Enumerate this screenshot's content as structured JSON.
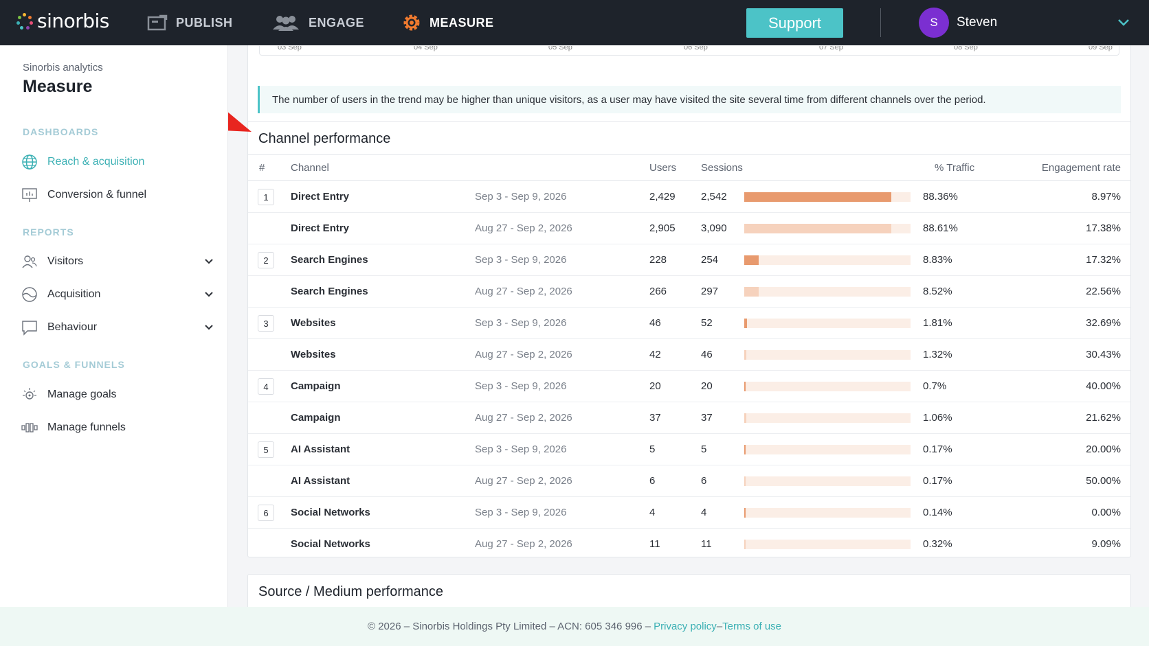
{
  "topbar": {
    "brand": "sinorbis",
    "nav": [
      {
        "label": "PUBLISH",
        "icon": "publish-icon"
      },
      {
        "label": "ENGAGE",
        "icon": "users-icon"
      },
      {
        "label": "MEASURE",
        "icon": "gear-icon"
      }
    ],
    "support_label": "Support",
    "avatar_initial": "S",
    "user_name": "Steven",
    "colors": {
      "bar": "#1e232b",
      "support": "#4cc3c7",
      "avatar": "#7b2fd1",
      "measure_icon": "#f07a2f"
    }
  },
  "sidebar": {
    "subtitle": "Sinorbis analytics",
    "title": "Measure",
    "sections": {
      "dashboards": "DASHBOARDS",
      "reports": "REPORTS",
      "goals": "GOALS & FUNNELS"
    },
    "items": {
      "reach": {
        "label": "Reach & acquisition",
        "icon": "globe-icon"
      },
      "conversion": {
        "label": "Conversion & funnel",
        "icon": "presentation-icon"
      },
      "visitors": {
        "label": "Visitors",
        "icon": "visitors-icon"
      },
      "acquisition": {
        "label": "Acquisition",
        "icon": "acquisition-icon"
      },
      "behaviour": {
        "label": "Behaviour",
        "icon": "chat-icon"
      },
      "goals": {
        "label": "Manage goals",
        "icon": "goal-icon"
      },
      "funnels": {
        "label": "Manage funnels",
        "icon": "funnel-icon"
      }
    }
  },
  "trend_axis": [
    "03 Sep",
    "04 Sep",
    "05 Sep",
    "06 Sep",
    "07 Sep",
    "08 Sep",
    "09 Sep"
  ],
  "info_text": "The number of users in the trend may be higher than unique visitors, as a user may have visited the site several time from different channels over the period.",
  "channel_performance": {
    "title": "Channel performance",
    "headers": {
      "rank": "#",
      "channel": "Channel",
      "users": "Users",
      "sessions": "Sessions",
      "traffic": "% Traffic",
      "engagement": "Engagement rate"
    },
    "rows": [
      {
        "rank": "1",
        "channel": "Direct Entry",
        "period": "Sep 3 - Sep 9, 2026",
        "users": "2,429",
        "sessions": "2,542",
        "traffic_pct": 88.36,
        "traffic": "88.36%",
        "engagement": "8.97%",
        "current": true
      },
      {
        "rank": "",
        "channel": "Direct Entry",
        "period": "Aug 27 - Sep 2, 2026",
        "users": "2,905",
        "sessions": "3,090",
        "traffic_pct": 88.61,
        "traffic": "88.61%",
        "engagement": "17.38%",
        "current": false
      },
      {
        "rank": "2",
        "channel": "Search Engines",
        "period": "Sep 3 - Sep 9, 2026",
        "users": "228",
        "sessions": "254",
        "traffic_pct": 8.83,
        "traffic": "8.83%",
        "engagement": "17.32%",
        "current": true
      },
      {
        "rank": "",
        "channel": "Search Engines",
        "period": "Aug 27 - Sep 2, 2026",
        "users": "266",
        "sessions": "297",
        "traffic_pct": 8.52,
        "traffic": "8.52%",
        "engagement": "22.56%",
        "current": false
      },
      {
        "rank": "3",
        "channel": "Websites",
        "period": "Sep 3 - Sep 9, 2026",
        "users": "46",
        "sessions": "52",
        "traffic_pct": 1.81,
        "traffic": "1.81%",
        "engagement": "32.69%",
        "current": true
      },
      {
        "rank": "",
        "channel": "Websites",
        "period": "Aug 27 - Sep 2, 2026",
        "users": "42",
        "sessions": "46",
        "traffic_pct": 1.32,
        "traffic": "1.32%",
        "engagement": "30.43%",
        "current": false
      },
      {
        "rank": "4",
        "channel": "Campaign",
        "period": "Sep 3 - Sep 9, 2026",
        "users": "20",
        "sessions": "20",
        "traffic_pct": 0.7,
        "traffic": "0.7%",
        "engagement": "40.00%",
        "current": true
      },
      {
        "rank": "",
        "channel": "Campaign",
        "period": "Aug 27 - Sep 2, 2026",
        "users": "37",
        "sessions": "37",
        "traffic_pct": 1.06,
        "traffic": "1.06%",
        "engagement": "21.62%",
        "current": false
      },
      {
        "rank": "5",
        "channel": "AI Assistant",
        "period": "Sep 3 - Sep 9, 2026",
        "users": "5",
        "sessions": "5",
        "traffic_pct": 0.17,
        "traffic": "0.17%",
        "engagement": "20.00%",
        "current": true
      },
      {
        "rank": "",
        "channel": "AI Assistant",
        "period": "Aug 27 - Sep 2, 2026",
        "users": "6",
        "sessions": "6",
        "traffic_pct": 0.17,
        "traffic": "0.17%",
        "engagement": "50.00%",
        "current": false
      },
      {
        "rank": "6",
        "channel": "Social Networks",
        "period": "Sep 3 - Sep 9, 2026",
        "users": "4",
        "sessions": "4",
        "traffic_pct": 0.14,
        "traffic": "0.14%",
        "engagement": "0.00%",
        "current": true
      },
      {
        "rank": "",
        "channel": "Social Networks",
        "period": "Aug 27 - Sep 2, 2026",
        "users": "11",
        "sessions": "11",
        "traffic_pct": 0.32,
        "traffic": "0.32%",
        "engagement": "9.09%",
        "current": false
      }
    ],
    "bar_colors": {
      "current": "#e89a6e",
      "previous": "#f6d2bd",
      "track": "#fbeee6"
    }
  },
  "source_medium": {
    "title": "Source / Medium performance"
  },
  "footer": {
    "text": "© 2026 – Sinorbis Holdings Pty Limited – ACN: 605 346 996 – ",
    "privacy": "Privacy policy",
    "sep": " – ",
    "terms": "Terms of use"
  }
}
